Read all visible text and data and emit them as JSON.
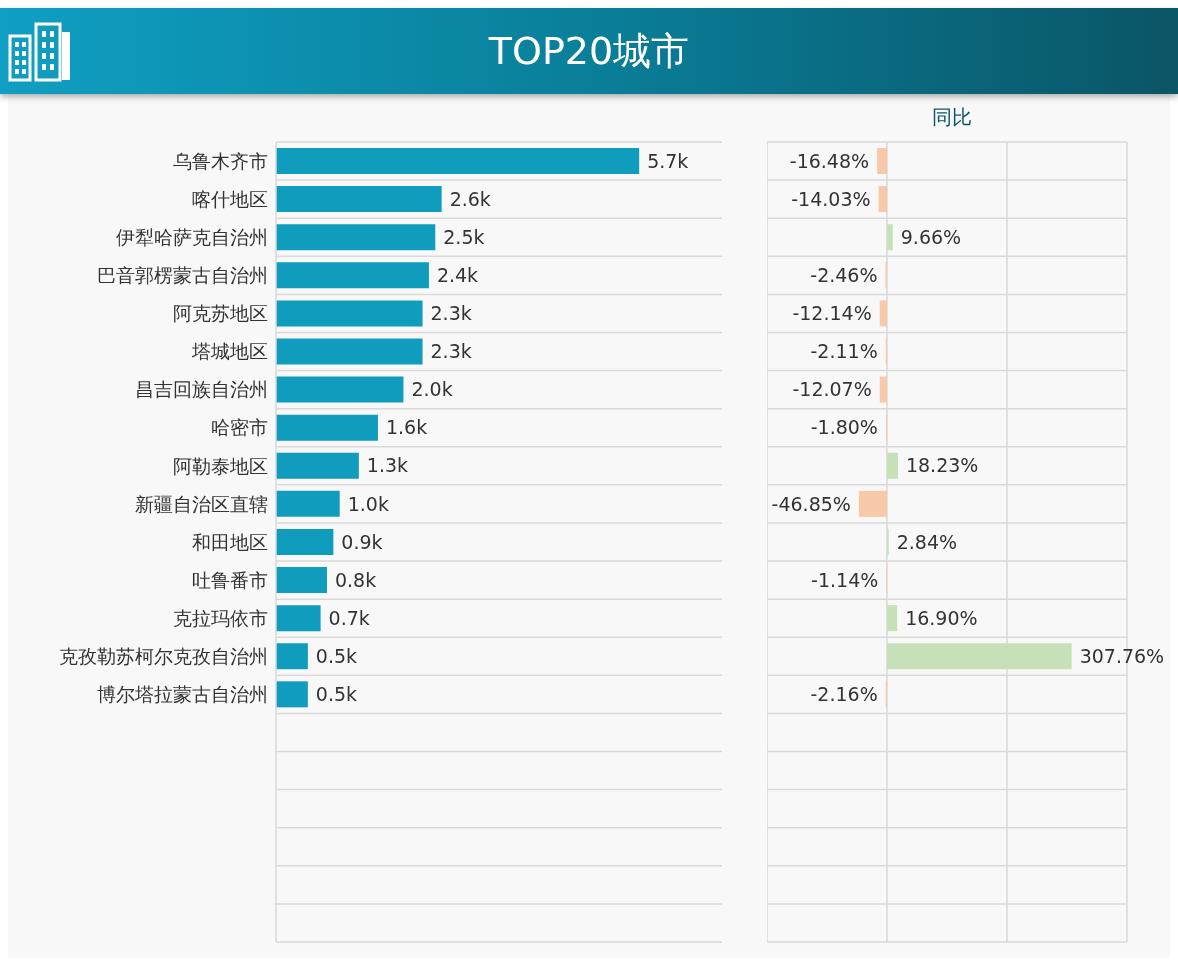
{
  "chart_data": [
    {
      "type": "bar",
      "orientation": "horizontal",
      "title": "TOP20城市",
      "categories": [
        "乌鲁木齐市",
        "喀什地区",
        "伊犁哈萨克自治州",
        "巴音郭楞蒙古自治州",
        "阿克苏地区",
        "塔城地区",
        "昌吉回族自治州",
        "哈密市",
        "阿勒泰地区",
        "新疆自治区直辖",
        "和田地区",
        "吐鲁番市",
        "克拉玛依市",
        "克孜勒苏柯尔克孜自治州",
        "博尔塔拉蒙古自治州",
        null,
        null,
        null,
        null,
        null,
        null
      ],
      "values": [
        5.7,
        2.6,
        2.5,
        2.4,
        2.3,
        2.3,
        2.0,
        1.6,
        1.3,
        1.0,
        0.9,
        0.8,
        0.7,
        0.5,
        0.5,
        null,
        null,
        null,
        null,
        null,
        null
      ],
      "value_labels": [
        "5.7k",
        "2.6k",
        "2.5k",
        "2.4k",
        "2.3k",
        "2.3k",
        "2.0k",
        "1.6k",
        "1.3k",
        "1.0k",
        "0.9k",
        "0.8k",
        "0.7k",
        "0.5k",
        "0.5k",
        null,
        null,
        null,
        null,
        null,
        null
      ],
      "color": "#109cbd",
      "xlim": [
        0,
        7
      ],
      "grid": "y",
      "tick_labels": "y"
    },
    {
      "type": "bar",
      "orientation": "horizontal",
      "title": "同比",
      "categories": [
        null,
        null,
        null,
        null,
        null,
        null,
        null,
        null,
        null,
        null,
        null,
        null,
        null,
        null,
        null,
        null,
        null,
        null,
        null,
        null,
        null
      ],
      "values": [
        -16.48,
        -14.03,
        9.66,
        -2.46,
        -12.14,
        -2.11,
        -12.07,
        -1.8,
        18.23,
        -46.85,
        2.84,
        -1.14,
        16.9,
        307.76,
        -2.16,
        null,
        null,
        null,
        null,
        null,
        null
      ],
      "value_labels": [
        "-16.48%",
        "-14.03%",
        "9.66%",
        "-2.46%",
        "-12.14%",
        "-2.11%",
        "-12.07%",
        "-1.80%",
        "18.23%",
        "-46.85%",
        "2.84%",
        "-1.14%",
        "16.90%",
        "307.76%",
        "-2.16%",
        null,
        null,
        null,
        null,
        null,
        null
      ],
      "colors": [
        "#f8c9a8",
        "#f8c9a8",
        "#c6e0b8",
        "#f8c9a8",
        "#f8c9a8",
        "#f8c9a8",
        "#f8c9a8",
        "#f8c9a8",
        "#c6e0b8",
        "#f8c9a8",
        "#c6e0b8",
        "#f8c9a8",
        "#c6e0b8",
        "#c6e0b8",
        "#f8c9a8",
        null,
        null,
        null,
        null,
        null,
        null
      ],
      "xlim": [
        -200,
        400
      ],
      "grid": true,
      "tick_labels": false
    }
  ]
}
